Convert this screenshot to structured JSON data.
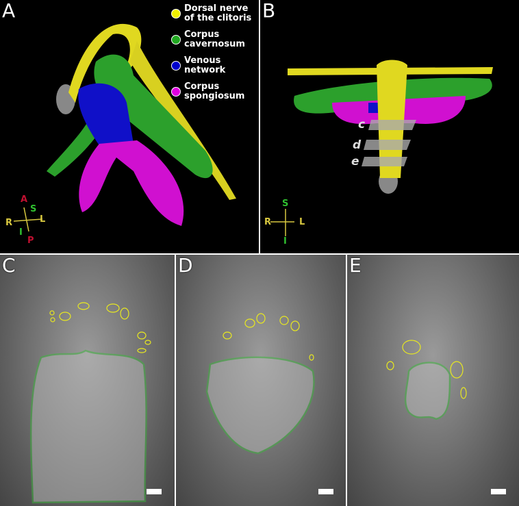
{
  "panels": {
    "A": {
      "label": "A"
    },
    "B": {
      "label": "B"
    },
    "C": {
      "label": "C"
    },
    "D": {
      "label": "D"
    },
    "E": {
      "label": "E"
    }
  },
  "legend": [
    {
      "label_line1": "Dorsal nerve",
      "label_line2": "of the clitoris",
      "color": "#f0f000"
    },
    {
      "label_line1": "Corpus",
      "label_line2": "cavernosum",
      "color": "#22a822"
    },
    {
      "label_line1": "Venous",
      "label_line2": "network",
      "color": "#0000cc"
    },
    {
      "label_line1": "Corpus",
      "label_line2": "spongiosum",
      "color": "#e000e0"
    }
  ],
  "orientation_A": {
    "A": "A",
    "S": "S",
    "L": "L",
    "R": "R",
    "I": "I",
    "P": "P"
  },
  "orientation_B": {
    "S": "S",
    "L": "L",
    "R": "R",
    "I": "I"
  },
  "slices": [
    "c",
    "d",
    "e"
  ],
  "colors": {
    "nerve": "#f0f000",
    "cavernosum": "#22a822",
    "venous": "#0000cc",
    "spongiosum": "#e000e0",
    "outline_green": "#3cb83c",
    "outline_yellow": "#e8e820"
  }
}
